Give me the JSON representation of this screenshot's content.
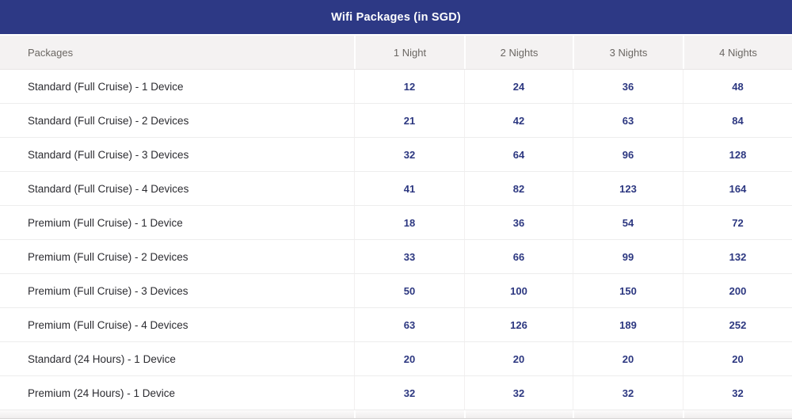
{
  "title": "Wifi Packages (in SGD)",
  "colors": {
    "title_bar_bg": "#2d3985",
    "title_text": "#ffffff",
    "header_row_bg": "#f4f2f2",
    "header_text": "#6b6763",
    "row_label_text": "#2c2c31",
    "value_text": "#2c3780",
    "row_border": "#ededed"
  },
  "table": {
    "columns": [
      "Packages",
      "1 Night",
      "2 Nights",
      "3 Nights",
      "4 Nights"
    ],
    "rows": [
      {
        "label": "Standard (Full Cruise) - 1 Device",
        "values": [
          "12",
          "24",
          "36",
          "48"
        ]
      },
      {
        "label": "Standard (Full Cruise) - 2 Devices",
        "values": [
          "21",
          "42",
          "63",
          "84"
        ]
      },
      {
        "label": "Standard (Full Cruise) - 3 Devices",
        "values": [
          "32",
          "64",
          "96",
          "128"
        ]
      },
      {
        "label": "Standard (Full Cruise) - 4 Devices",
        "values": [
          "41",
          "82",
          "123",
          "164"
        ]
      },
      {
        "label": "Premium (Full Cruise) - 1 Device",
        "values": [
          "18",
          "36",
          "54",
          "72"
        ]
      },
      {
        "label": "Premium (Full Cruise) - 2 Devices",
        "values": [
          "33",
          "66",
          "99",
          "132"
        ]
      },
      {
        "label": "Premium (Full Cruise) - 3 Devices",
        "values": [
          "50",
          "100",
          "150",
          "200"
        ]
      },
      {
        "label": "Premium (Full Cruise) - 4 Devices",
        "values": [
          "63",
          "126",
          "189",
          "252"
        ]
      },
      {
        "label": "Standard (24 Hours) - 1 Device",
        "values": [
          "20",
          "20",
          "20",
          "20"
        ]
      },
      {
        "label": "Premium (24 Hours) - 1 Device",
        "values": [
          "32",
          "32",
          "32",
          "32"
        ]
      }
    ]
  }
}
